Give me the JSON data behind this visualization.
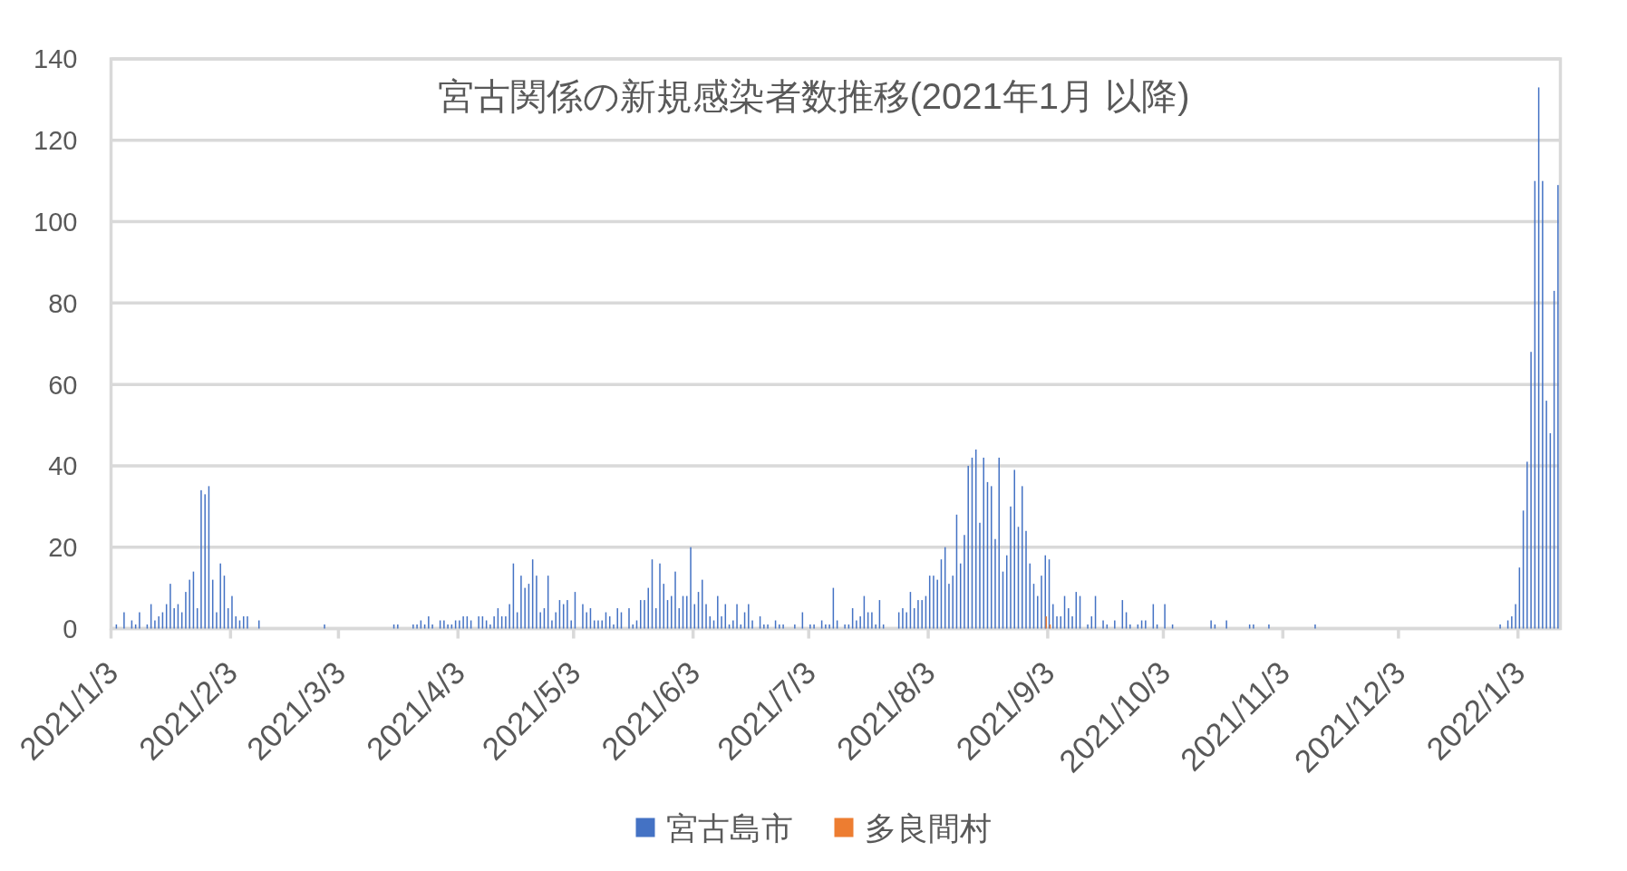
{
  "chart_data": {
    "type": "bar",
    "title": "宮古関係の新規感染者数推移(2021年1月 以降)",
    "xlim": [
      "2021-01-03",
      "2022-01-14"
    ],
    "xticks": [
      {
        "value": "2021-01-03",
        "label": "2021/1/3"
      },
      {
        "value": "2021-02-03",
        "label": "2021/2/3"
      },
      {
        "value": "2021-03-03",
        "label": "2021/3/3"
      },
      {
        "value": "2021-04-03",
        "label": "2021/4/3"
      },
      {
        "value": "2021-05-03",
        "label": "2021/5/3"
      },
      {
        "value": "2021-06-03",
        "label": "2021/6/3"
      },
      {
        "value": "2021-07-03",
        "label": "2021/7/3"
      },
      {
        "value": "2021-08-03",
        "label": "2021/8/3"
      },
      {
        "value": "2021-09-03",
        "label": "2021/9/3"
      },
      {
        "value": "2021-10-03",
        "label": "2021/10/3"
      },
      {
        "value": "2021-11-03",
        "label": "2021/11/3"
      },
      {
        "value": "2021-12-03",
        "label": "2021/12/3"
      },
      {
        "value": "2022-01-03",
        "label": "2022/1/3"
      }
    ],
    "ylim": [
      0,
      140
    ],
    "yticks": [
      0,
      20,
      40,
      60,
      80,
      100,
      120,
      140
    ],
    "grid": "y",
    "legend": "bottom",
    "series": [
      {
        "name": "宮古島市",
        "color": "#4472c4",
        "x": [
          "2021-01-04",
          "2021-01-06",
          "2021-01-08",
          "2021-01-09",
          "2021-01-10",
          "2021-01-12",
          "2021-01-13",
          "2021-01-14",
          "2021-01-15",
          "2021-01-16",
          "2021-01-17",
          "2021-01-18",
          "2021-01-19",
          "2021-01-20",
          "2021-01-21",
          "2021-01-22",
          "2021-01-23",
          "2021-01-24",
          "2021-01-25",
          "2021-01-26",
          "2021-01-27",
          "2021-01-28",
          "2021-01-29",
          "2021-01-30",
          "2021-01-31",
          "2021-02-01",
          "2021-02-02",
          "2021-02-03",
          "2021-02-04",
          "2021-02-05",
          "2021-02-06",
          "2021-02-07",
          "2021-02-10",
          "2021-02-27",
          "2021-03-17",
          "2021-03-18",
          "2021-03-22",
          "2021-03-23",
          "2021-03-24",
          "2021-03-25",
          "2021-03-26",
          "2021-03-27",
          "2021-03-29",
          "2021-03-30",
          "2021-03-31",
          "2021-04-01",
          "2021-04-02",
          "2021-04-03",
          "2021-04-04",
          "2021-04-05",
          "2021-04-06",
          "2021-04-08",
          "2021-04-09",
          "2021-04-10",
          "2021-04-11",
          "2021-04-12",
          "2021-04-13",
          "2021-04-14",
          "2021-04-15",
          "2021-04-16",
          "2021-04-17",
          "2021-04-18",
          "2021-04-19",
          "2021-04-20",
          "2021-04-21",
          "2021-04-22",
          "2021-04-23",
          "2021-04-24",
          "2021-04-25",
          "2021-04-26",
          "2021-04-27",
          "2021-04-28",
          "2021-04-29",
          "2021-04-30",
          "2021-05-01",
          "2021-05-02",
          "2021-05-03",
          "2021-05-05",
          "2021-05-06",
          "2021-05-07",
          "2021-05-08",
          "2021-05-09",
          "2021-05-10",
          "2021-05-11",
          "2021-05-12",
          "2021-05-13",
          "2021-05-14",
          "2021-05-15",
          "2021-05-17",
          "2021-05-18",
          "2021-05-19",
          "2021-05-20",
          "2021-05-21",
          "2021-05-22",
          "2021-05-23",
          "2021-05-24",
          "2021-05-25",
          "2021-05-26",
          "2021-05-27",
          "2021-05-28",
          "2021-05-29",
          "2021-05-30",
          "2021-05-31",
          "2021-06-01",
          "2021-06-02",
          "2021-06-03",
          "2021-06-04",
          "2021-06-05",
          "2021-06-06",
          "2021-06-07",
          "2021-06-08",
          "2021-06-09",
          "2021-06-10",
          "2021-06-11",
          "2021-06-12",
          "2021-06-13",
          "2021-06-14",
          "2021-06-15",
          "2021-06-16",
          "2021-06-17",
          "2021-06-18",
          "2021-06-20",
          "2021-06-21",
          "2021-06-22",
          "2021-06-24",
          "2021-06-25",
          "2021-06-26",
          "2021-06-29",
          "2021-07-01",
          "2021-07-03",
          "2021-07-04",
          "2021-07-06",
          "2021-07-07",
          "2021-07-08",
          "2021-07-09",
          "2021-07-10",
          "2021-07-12",
          "2021-07-13",
          "2021-07-14",
          "2021-07-15",
          "2021-07-16",
          "2021-07-17",
          "2021-07-18",
          "2021-07-19",
          "2021-07-20",
          "2021-07-21",
          "2021-07-22",
          "2021-07-26",
          "2021-07-27",
          "2021-07-28",
          "2021-07-29",
          "2021-07-30",
          "2021-07-31",
          "2021-08-01",
          "2021-08-02",
          "2021-08-03",
          "2021-08-04",
          "2021-08-05",
          "2021-08-06",
          "2021-08-07",
          "2021-08-08",
          "2021-08-09",
          "2021-08-10",
          "2021-08-11",
          "2021-08-12",
          "2021-08-13",
          "2021-08-14",
          "2021-08-15",
          "2021-08-16",
          "2021-08-17",
          "2021-08-18",
          "2021-08-19",
          "2021-08-20",
          "2021-08-21",
          "2021-08-22",
          "2021-08-23",
          "2021-08-24",
          "2021-08-25",
          "2021-08-26",
          "2021-08-27",
          "2021-08-28",
          "2021-08-29",
          "2021-08-30",
          "2021-08-31",
          "2021-09-01",
          "2021-09-02",
          "2021-09-03",
          "2021-09-04",
          "2021-09-05",
          "2021-09-06",
          "2021-09-07",
          "2021-09-08",
          "2021-09-09",
          "2021-09-10",
          "2021-09-11",
          "2021-09-13",
          "2021-09-14",
          "2021-09-15",
          "2021-09-17",
          "2021-09-18",
          "2021-09-20",
          "2021-09-22",
          "2021-09-23",
          "2021-09-24",
          "2021-09-26",
          "2021-09-27",
          "2021-09-28",
          "2021-09-30",
          "2021-10-01",
          "2021-10-03",
          "2021-10-05",
          "2021-10-15",
          "2021-10-16",
          "2021-10-19",
          "2021-10-25",
          "2021-10-26",
          "2021-10-30",
          "2021-11-11",
          "2021-12-29",
          "2021-12-31",
          "2022-01-01",
          "2022-01-02",
          "2022-01-03",
          "2022-01-04",
          "2022-01-05",
          "2022-01-06",
          "2022-01-07",
          "2022-01-08",
          "2022-01-09",
          "2022-01-10",
          "2022-01-11",
          "2022-01-12",
          "2022-01-13"
        ],
        "values": [
          1,
          4,
          2,
          1,
          4,
          1,
          6,
          2,
          3,
          4,
          6,
          11,
          5,
          6,
          4,
          9,
          12,
          14,
          5,
          34,
          33,
          35,
          12,
          4,
          16,
          13,
          5,
          8,
          3,
          2,
          3,
          3,
          2,
          1,
          1,
          1,
          1,
          1,
          2,
          1,
          3,
          1,
          2,
          2,
          1,
          1,
          2,
          2,
          3,
          3,
          2,
          3,
          3,
          2,
          1,
          3,
          5,
          3,
          3,
          6,
          16,
          4,
          13,
          10,
          11,
          17,
          13,
          4,
          5,
          13,
          2,
          4,
          7,
          6,
          7,
          2,
          9,
          6,
          4,
          5,
          2,
          2,
          2,
          4,
          3,
          1,
          5,
          4,
          5,
          1,
          2,
          7,
          7,
          10,
          17,
          5,
          16,
          11,
          7,
          8,
          14,
          5,
          8,
          8,
          20,
          6,
          9,
          12,
          6,
          3,
          2,
          8,
          3,
          6,
          1,
          2,
          6,
          1,
          4,
          6,
          2,
          3,
          1,
          1,
          2,
          1,
          1,
          1,
          4,
          1,
          1,
          2,
          1,
          1,
          10,
          2,
          1,
          1,
          5,
          2,
          3,
          8,
          4,
          4,
          1,
          7,
          1,
          4,
          5,
          4,
          9,
          5,
          7,
          7,
          8,
          13,
          13,
          12,
          17,
          20,
          11,
          13,
          28,
          16,
          23,
          40,
          42,
          44,
          26,
          42,
          36,
          35,
          22,
          42,
          14,
          18,
          30,
          39,
          25,
          35,
          24,
          16,
          11,
          8,
          13,
          18,
          17,
          6,
          3,
          3,
          8,
          5,
          3,
          9,
          8,
          1,
          3,
          8,
          2,
          1,
          2,
          7,
          4,
          1,
          1,
          2,
          2,
          6,
          1,
          6,
          1,
          2,
          1,
          2,
          1,
          1,
          1,
          1,
          1,
          2,
          3,
          6,
          15,
          29,
          41,
          68,
          110,
          133,
          110,
          56,
          48,
          83,
          109
        ]
      },
      {
        "name": "多良間村",
        "color": "#ed7d31",
        "x": [
          "2021-09-02",
          "2021-09-03"
        ],
        "values": [
          3,
          1
        ]
      }
    ]
  }
}
